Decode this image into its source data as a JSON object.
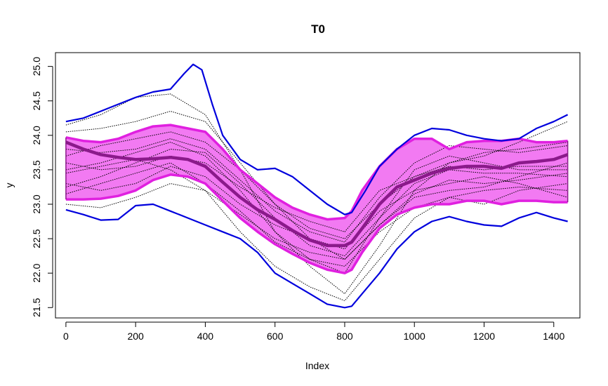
{
  "chart_data": {
    "type": "line",
    "title": "T0",
    "xlabel": "Index",
    "ylabel": "y",
    "xlim": [
      -30,
      1475
    ],
    "ylim": [
      21.35,
      25.2
    ],
    "x_ticks": [
      "0",
      "200",
      "400",
      "600",
      "800",
      "1000",
      "1200",
      "1400"
    ],
    "y_ticks": [
      "21.5",
      "22.0",
      "22.5",
      "23.0",
      "23.5",
      "24.0",
      "24.5",
      "25.0"
    ],
    "grid": false,
    "legend": "none",
    "colors": {
      "band_fill": "#f27af2",
      "band_edge": "#e020e0",
      "median": "#8b1a8b",
      "envelope": "#0000dd",
      "curves": "#000000"
    },
    "series": [
      {
        "role": "envelope-upper",
        "x": [
          0,
          50,
          100,
          150,
          200,
          250,
          300,
          340,
          365,
          390,
          420,
          450,
          500,
          550,
          600,
          650,
          700,
          750,
          800,
          820,
          860,
          900,
          950,
          1000,
          1050,
          1100,
          1150,
          1200,
          1250,
          1300,
          1350,
          1400,
          1440
        ],
        "values": [
          24.2,
          24.25,
          24.35,
          24.45,
          24.55,
          24.63,
          24.67,
          24.9,
          25.03,
          24.95,
          24.45,
          24.0,
          23.65,
          23.5,
          23.52,
          23.4,
          23.2,
          23.0,
          22.85,
          22.88,
          23.2,
          23.55,
          23.8,
          24.0,
          24.1,
          24.08,
          24.0,
          23.95,
          23.92,
          23.95,
          24.1,
          24.2,
          24.3
        ]
      },
      {
        "role": "envelope-lower",
        "x": [
          0,
          50,
          100,
          150,
          200,
          250,
          300,
          350,
          400,
          450,
          500,
          550,
          600,
          650,
          700,
          750,
          800,
          820,
          850,
          900,
          950,
          1000,
          1050,
          1100,
          1150,
          1200,
          1250,
          1300,
          1350,
          1400,
          1440
        ],
        "values": [
          22.92,
          22.85,
          22.77,
          22.78,
          22.98,
          23.0,
          22.9,
          22.8,
          22.7,
          22.6,
          22.5,
          22.3,
          22.0,
          21.85,
          21.7,
          21.55,
          21.5,
          21.52,
          21.7,
          22.0,
          22.35,
          22.6,
          22.75,
          22.82,
          22.75,
          22.7,
          22.68,
          22.8,
          22.88,
          22.8,
          22.75
        ]
      },
      {
        "role": "band-upper",
        "x": [
          0,
          50,
          100,
          150,
          200,
          250,
          300,
          350,
          400,
          450,
          500,
          550,
          600,
          650,
          700,
          750,
          800,
          820,
          850,
          900,
          950,
          1000,
          1050,
          1100,
          1150,
          1200,
          1250,
          1300,
          1350,
          1400,
          1440
        ],
        "values": [
          23.97,
          23.92,
          23.9,
          23.95,
          24.05,
          24.13,
          24.15,
          24.1,
          24.05,
          23.8,
          23.5,
          23.3,
          23.1,
          22.95,
          22.85,
          22.78,
          22.8,
          22.9,
          23.2,
          23.55,
          23.8,
          23.95,
          23.95,
          23.8,
          23.9,
          23.92,
          23.92,
          23.95,
          23.9,
          23.9,
          23.92
        ]
      },
      {
        "role": "band-lower",
        "x": [
          0,
          50,
          100,
          150,
          200,
          250,
          300,
          350,
          400,
          450,
          500,
          550,
          600,
          650,
          700,
          750,
          800,
          820,
          850,
          900,
          950,
          1000,
          1050,
          1100,
          1150,
          1200,
          1250,
          1300,
          1350,
          1400,
          1440
        ],
        "values": [
          23.07,
          23.07,
          23.08,
          23.12,
          23.2,
          23.35,
          23.43,
          23.4,
          23.3,
          23.05,
          22.8,
          22.6,
          22.42,
          22.28,
          22.15,
          22.05,
          22.0,
          22.05,
          22.3,
          22.65,
          22.85,
          22.95,
          23.0,
          23.0,
          23.05,
          23.05,
          23.0,
          23.05,
          23.05,
          23.03,
          23.03
        ]
      },
      {
        "role": "median",
        "x": [
          0,
          50,
          100,
          150,
          200,
          250,
          300,
          350,
          400,
          450,
          500,
          550,
          600,
          650,
          700,
          750,
          800,
          820,
          850,
          900,
          950,
          1000,
          1050,
          1100,
          1150,
          1200,
          1250,
          1300,
          1350,
          1400,
          1440
        ],
        "values": [
          23.9,
          23.8,
          23.72,
          23.68,
          23.65,
          23.66,
          23.68,
          23.65,
          23.55,
          23.32,
          23.1,
          22.92,
          22.78,
          22.62,
          22.48,
          22.4,
          22.4,
          22.45,
          22.65,
          23.0,
          23.25,
          23.35,
          23.45,
          23.52,
          23.55,
          23.55,
          23.52,
          23.6,
          23.62,
          23.65,
          23.72
        ]
      },
      {
        "role": "curve",
        "x": [
          0,
          100,
          200,
          300,
          400,
          500,
          600,
          700,
          800,
          900,
          1000,
          1100,
          1200,
          1300,
          1440
        ],
        "values": [
          24.15,
          24.3,
          24.55,
          24.6,
          24.3,
          23.5,
          22.6,
          22.1,
          21.7,
          22.4,
          23.2,
          23.6,
          23.7,
          23.9,
          24.2
        ]
      },
      {
        "role": "curve",
        "x": [
          0,
          100,
          200,
          300,
          400,
          500,
          600,
          700,
          800,
          900,
          1000,
          1100,
          1200,
          1300,
          1440
        ],
        "values": [
          23.0,
          22.95,
          23.1,
          23.3,
          23.2,
          22.6,
          22.1,
          21.8,
          21.6,
          22.2,
          22.8,
          23.1,
          23.0,
          23.2,
          23.3
        ]
      },
      {
        "role": "curve",
        "x": [
          0,
          100,
          200,
          300,
          400,
          500,
          600,
          700,
          800,
          900,
          1000,
          1100,
          1200,
          1300,
          1440
        ],
        "values": [
          24.05,
          24.1,
          24.2,
          24.35,
          24.2,
          23.6,
          23.0,
          22.5,
          22.2,
          22.7,
          23.1,
          23.2,
          23.25,
          23.4,
          23.6
        ]
      },
      {
        "role": "curve",
        "x": [
          0,
          100,
          200,
          300,
          400,
          500,
          600,
          700,
          800,
          900,
          1000,
          1100,
          1200,
          1300,
          1440
        ],
        "values": [
          23.5,
          23.6,
          23.75,
          23.9,
          23.7,
          23.2,
          22.6,
          22.2,
          22.0,
          22.8,
          23.5,
          23.7,
          23.6,
          23.5,
          23.5
        ]
      },
      {
        "role": "curve",
        "x": [
          0,
          100,
          200,
          300,
          400,
          500,
          600,
          700,
          800,
          900,
          1000,
          1100,
          1200,
          1300,
          1440
        ],
        "values": [
          23.3,
          23.2,
          23.3,
          23.55,
          23.4,
          23.0,
          22.7,
          22.5,
          22.35,
          22.9,
          23.2,
          23.3,
          23.4,
          23.3,
          23.1
        ]
      },
      {
        "role": "curve",
        "x": [
          0,
          100,
          200,
          300,
          400,
          500,
          600,
          700,
          800,
          900,
          1000,
          1100,
          1200,
          1300,
          1440
        ],
        "values": [
          23.8,
          23.75,
          23.8,
          23.95,
          23.8,
          23.35,
          22.9,
          22.6,
          22.45,
          23.1,
          23.6,
          23.85,
          23.8,
          23.75,
          23.85
        ]
      },
      {
        "role": "curve",
        "x": [
          0,
          100,
          200,
          300,
          400,
          500,
          600,
          700,
          800,
          900,
          1000,
          1100,
          1200,
          1300,
          1440
        ],
        "values": [
          23.6,
          23.5,
          23.55,
          23.7,
          23.6,
          23.25,
          22.95,
          22.75,
          22.6,
          23.2,
          23.4,
          23.55,
          23.5,
          23.55,
          23.55
        ]
      },
      {
        "role": "curve",
        "x": [
          0,
          100,
          200,
          300,
          400,
          500,
          600,
          700,
          800,
          900,
          1000,
          1100,
          1200,
          1300,
          1440
        ],
        "values": [
          23.15,
          23.3,
          23.45,
          23.6,
          23.3,
          22.9,
          22.45,
          22.2,
          22.1,
          22.6,
          22.95,
          23.1,
          23.2,
          23.25,
          23.2
        ]
      },
      {
        "role": "curve",
        "x": [
          0,
          100,
          200,
          300,
          400,
          500,
          600,
          700,
          800,
          900,
          1000,
          1100,
          1200,
          1300,
          1440
        ],
        "values": [
          23.7,
          23.85,
          23.95,
          24.05,
          23.9,
          23.5,
          23.0,
          22.65,
          22.5,
          23.0,
          23.4,
          23.6,
          23.75,
          23.8,
          23.9
        ]
      },
      {
        "role": "curve",
        "x": [
          0,
          100,
          200,
          300,
          400,
          500,
          600,
          700,
          800,
          900,
          1000,
          1100,
          1200,
          1300,
          1440
        ],
        "values": [
          23.25,
          23.4,
          23.6,
          23.8,
          23.75,
          23.3,
          22.8,
          22.4,
          22.25,
          22.8,
          23.3,
          23.5,
          23.45,
          23.45,
          23.4
        ]
      },
      {
        "role": "curve",
        "x": [
          0,
          100,
          200,
          300,
          400,
          500,
          600,
          700,
          800,
          900,
          1000,
          1100,
          1200,
          1300,
          1440
        ],
        "values": [
          23.45,
          23.55,
          23.65,
          23.5,
          23.2,
          22.85,
          22.5,
          22.3,
          22.2,
          22.7,
          23.15,
          23.35,
          23.3,
          23.35,
          23.45
        ]
      }
    ]
  }
}
